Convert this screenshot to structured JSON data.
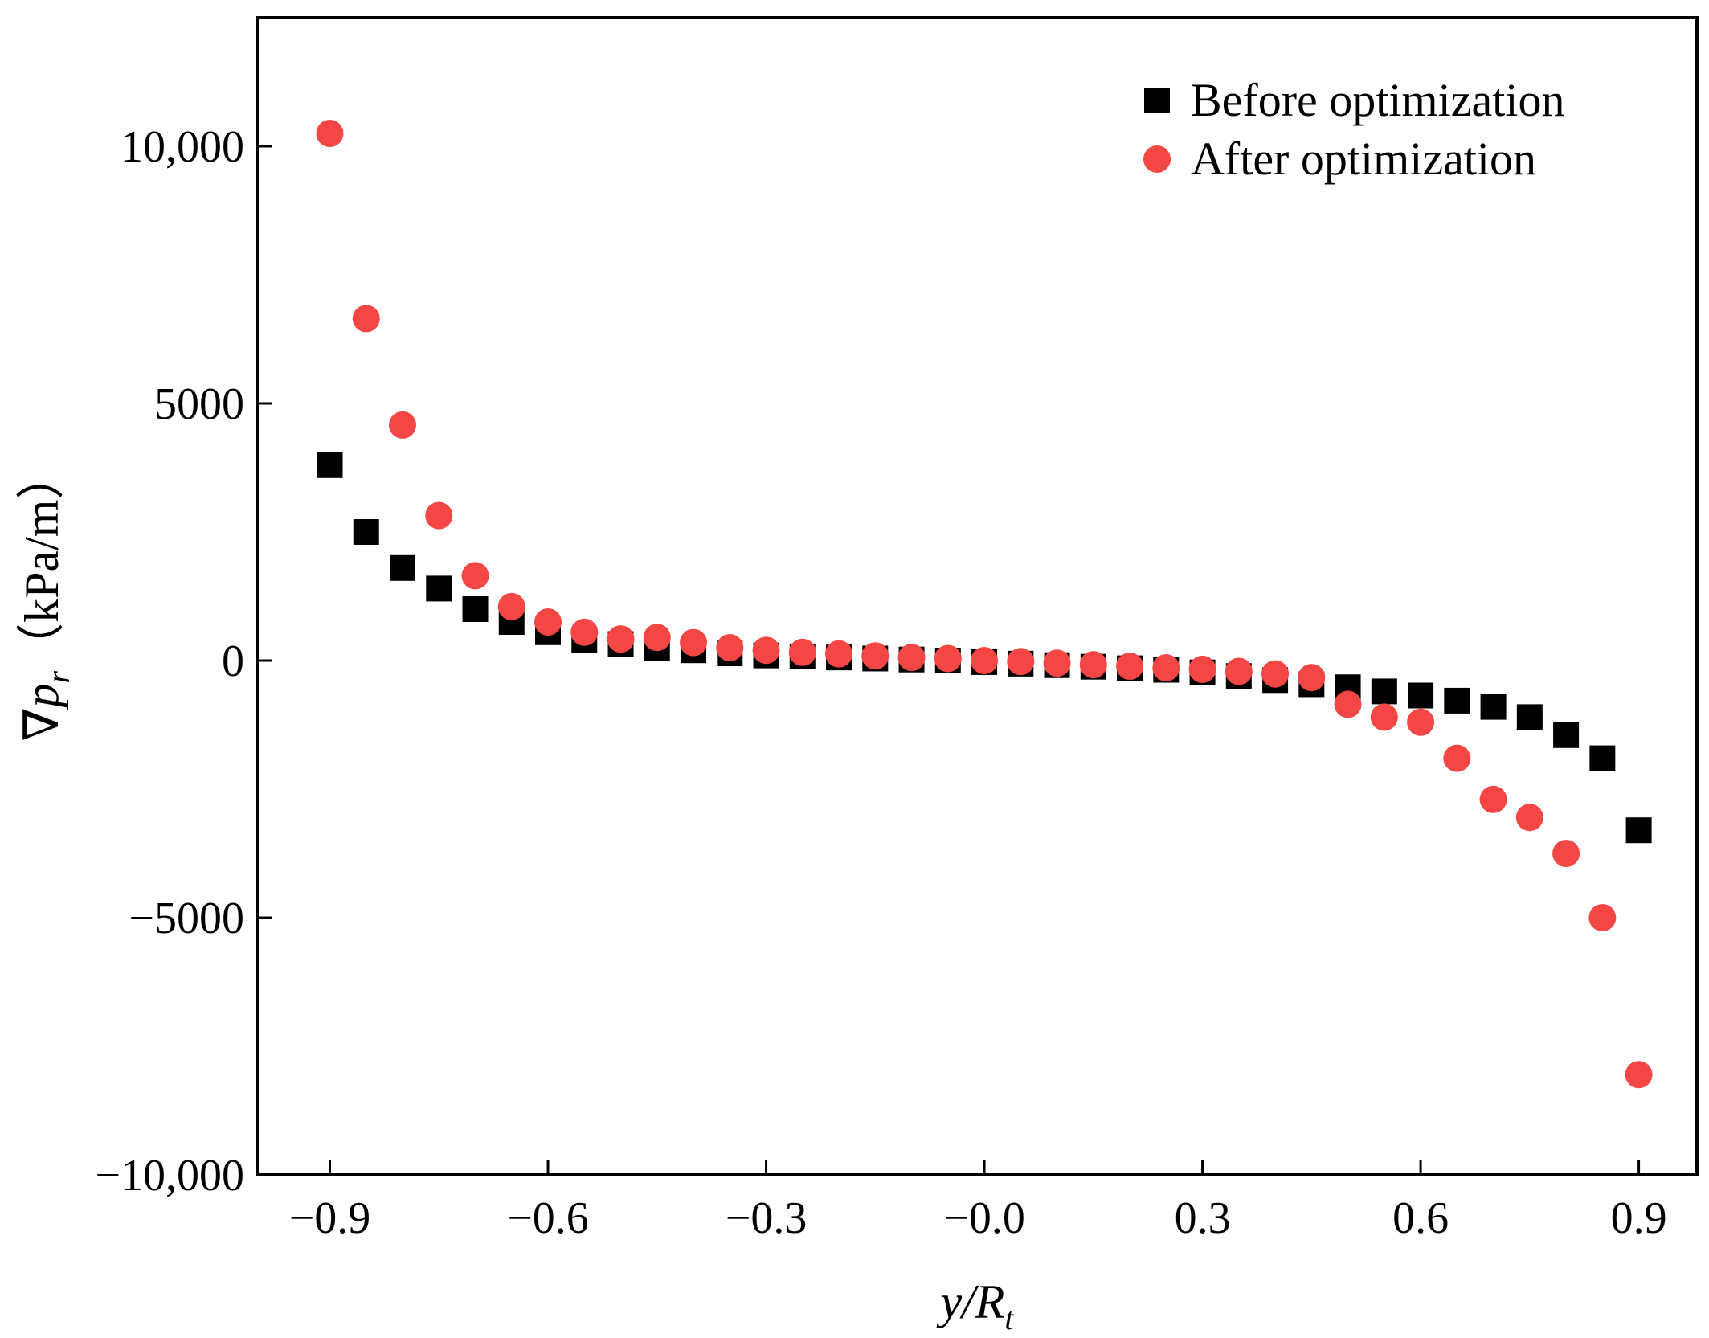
{
  "chart_data": {
    "type": "scatter",
    "xlabel": "y/R",
    "xlabel_subscript": "t",
    "ylabel": "∇p",
    "ylabel_subscript": "r",
    "ylabel_unit": "（kPa/m）",
    "xlim": [
      -1.0,
      0.98
    ],
    "ylim": [
      -10000,
      12500
    ],
    "x_ticks": [
      -0.9,
      -0.6,
      -0.3,
      0.0,
      0.3,
      0.6,
      0.9
    ],
    "x_tick_labels": [
      "−0.9",
      "−0.6",
      "−0.3",
      "−0.0",
      "0.3",
      "0.6",
      "0.9"
    ],
    "y_ticks": [
      10000,
      5000,
      0,
      -5000,
      -10000
    ],
    "y_tick_labels": [
      "10,000",
      "5000",
      "0",
      "−5000",
      "−10,000"
    ],
    "grid": false,
    "legend_position": "top-right",
    "series": [
      {
        "name": "Before optimization",
        "marker": "square",
        "color": "#000000",
        "x": [
          -0.9,
          -0.85,
          -0.8,
          -0.75,
          -0.7,
          -0.65,
          -0.6,
          -0.55,
          -0.5,
          -0.45,
          -0.4,
          -0.35,
          -0.3,
          -0.25,
          -0.2,
          -0.15,
          -0.1,
          -0.05,
          0.0,
          0.05,
          0.1,
          0.15,
          0.2,
          0.25,
          0.3,
          0.35,
          0.4,
          0.45,
          0.5,
          0.55,
          0.6,
          0.65,
          0.7,
          0.75,
          0.8,
          0.85,
          0.9
        ],
        "y": [
          3800,
          2500,
          1800,
          1400,
          1000,
          750,
          550,
          400,
          320,
          250,
          200,
          140,
          100,
          80,
          60,
          40,
          20,
          0,
          -30,
          -60,
          -90,
          -120,
          -150,
          -180,
          -230,
          -300,
          -380,
          -460,
          -520,
          -600,
          -680,
          -780,
          -900,
          -1100,
          -1450,
          -1900,
          -3300
        ]
      },
      {
        "name": "After optimization",
        "marker": "circle",
        "color": "#f54646",
        "x": [
          -0.9,
          -0.85,
          -0.8,
          -0.75,
          -0.7,
          -0.65,
          -0.6,
          -0.55,
          -0.5,
          -0.45,
          -0.4,
          -0.35,
          -0.3,
          -0.25,
          -0.2,
          -0.15,
          -0.1,
          -0.05,
          0.0,
          0.05,
          0.1,
          0.15,
          0.2,
          0.25,
          0.3,
          0.35,
          0.4,
          0.45,
          0.5,
          0.55,
          0.6,
          0.65,
          0.7,
          0.75,
          0.8,
          0.85,
          0.9
        ],
        "y": [
          10250,
          6650,
          4580,
          2820,
          1650,
          1050,
          750,
          550,
          420,
          450,
          350,
          250,
          200,
          160,
          130,
          90,
          60,
          40,
          0,
          -20,
          -50,
          -80,
          -110,
          -140,
          -170,
          -210,
          -260,
          -330,
          -850,
          -1100,
          -1200,
          -1900,
          -2700,
          -3050,
          -3750,
          -5000,
          -8050
        ]
      }
    ]
  }
}
